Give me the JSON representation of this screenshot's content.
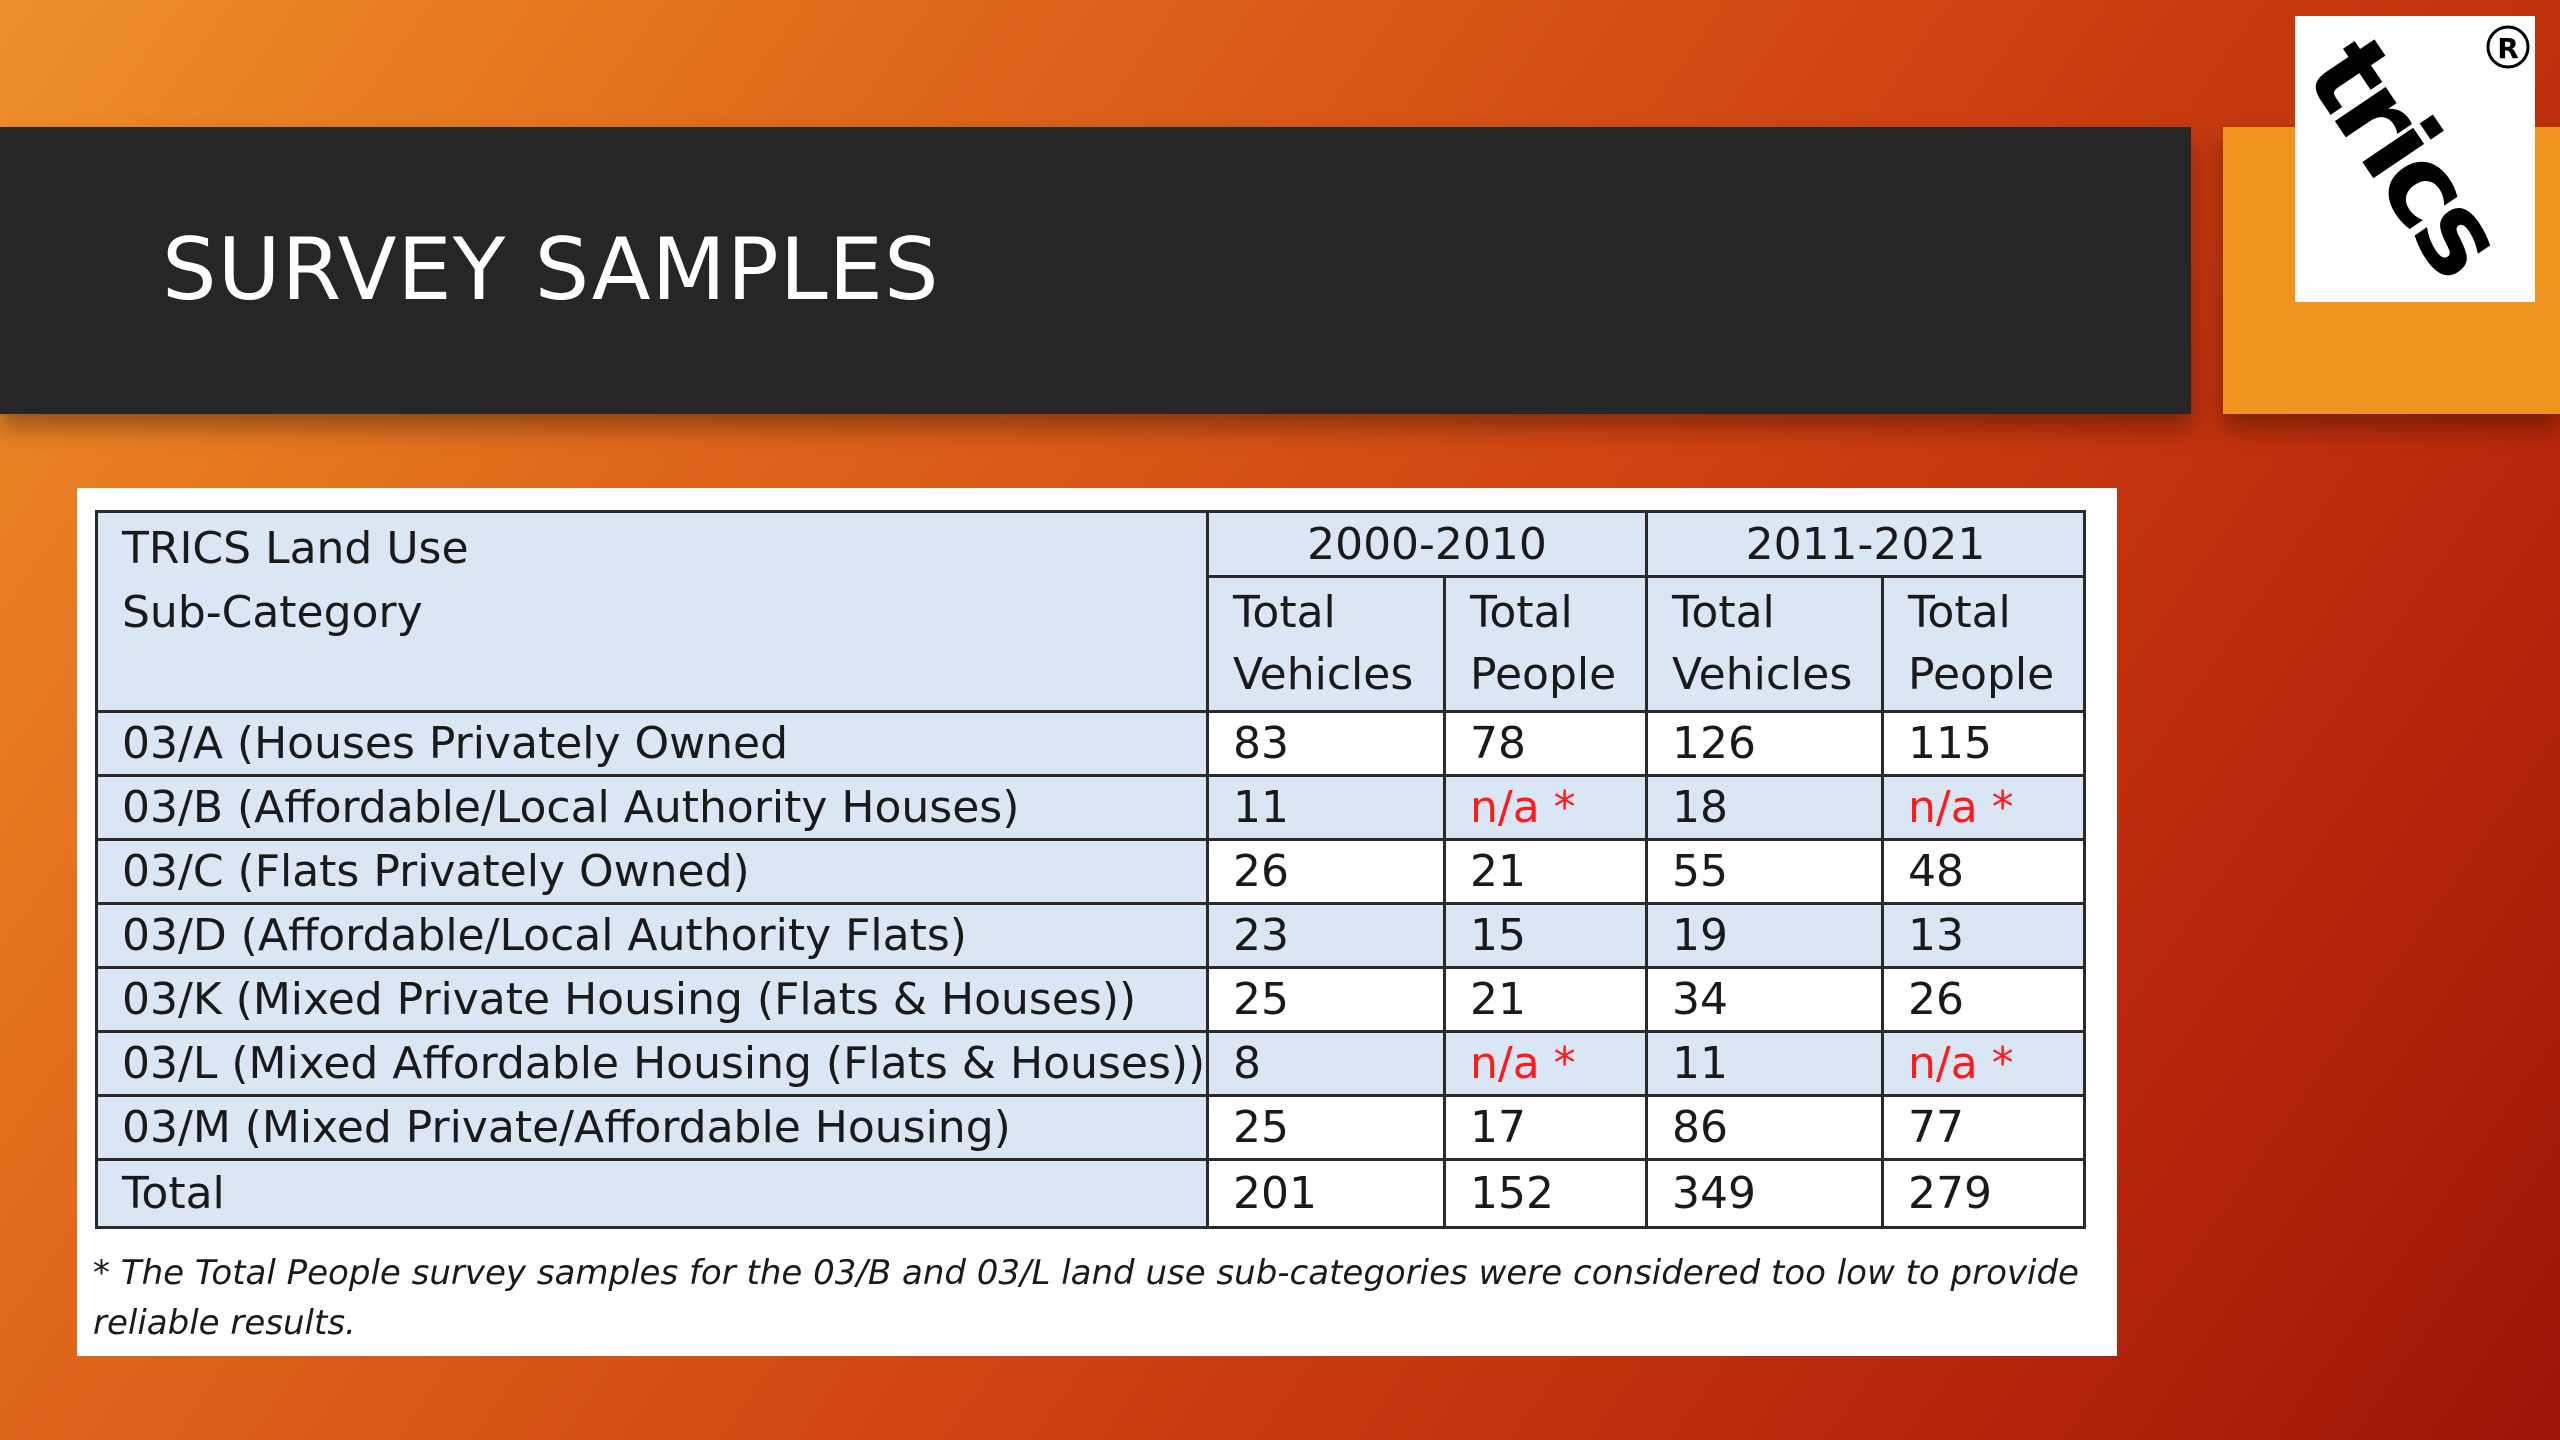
{
  "slide": {
    "title": "SURVEY SAMPLES",
    "logo": {
      "text": "trics",
      "registered_mark": "®",
      "colors": {
        "band": "#f0941f",
        "box": "#ffffff",
        "text": "#000000"
      }
    },
    "colors": {
      "title_band": "#262626",
      "title_text": "#ffffff",
      "shaded_cell": "#dbe6f4",
      "na_text": "#ff1a1a"
    }
  },
  "table": {
    "header": {
      "category_label_line1": "TRICS Land Use",
      "category_label_line2": "Sub-Category",
      "period_1": "2000-2010",
      "period_2": "2011-2021",
      "col_vehicles_line1": "Total",
      "col_vehicles_line2": "Vehicles",
      "col_people_line1": "Total",
      "col_people_line2": "People"
    },
    "rows": [
      {
        "category": "03/A (Houses Privately Owned",
        "v1": "83",
        "p1": "78",
        "v2": "126",
        "p2": "115"
      },
      {
        "category": "03/B (Affordable/Local Authority Houses)",
        "v1": "11",
        "p1": "n/a *",
        "v2": "18",
        "p2": "n/a *"
      },
      {
        "category": "03/C (Flats Privately Owned)",
        "v1": "26",
        "p1": "21",
        "v2": "55",
        "p2": "48"
      },
      {
        "category": "03/D (Affordable/Local Authority Flats)",
        "v1": "23",
        "p1": "15",
        "v2": "19",
        "p2": "13"
      },
      {
        "category": "03/K (Mixed Private Housing (Flats & Houses))",
        "v1": "25",
        "p1": "21",
        "v2": "34",
        "p2": "26"
      },
      {
        "category": "03/L (Mixed Affordable Housing (Flats & Houses))",
        "v1": "8",
        "p1": "n/a *",
        "v2": "11",
        "p2": "n/a *"
      },
      {
        "category": "03/M (Mixed Private/Affordable Housing)",
        "v1": "25",
        "p1": "17",
        "v2": "86",
        "p2": "77"
      }
    ],
    "total": {
      "category": "Total",
      "v1": "201",
      "p1": "152",
      "v2": "349",
      "p2": "279"
    },
    "footnote": "* The Total People survey samples for the 03/B and 03/L land use sub-categories were considered too low to provide reliable results."
  }
}
